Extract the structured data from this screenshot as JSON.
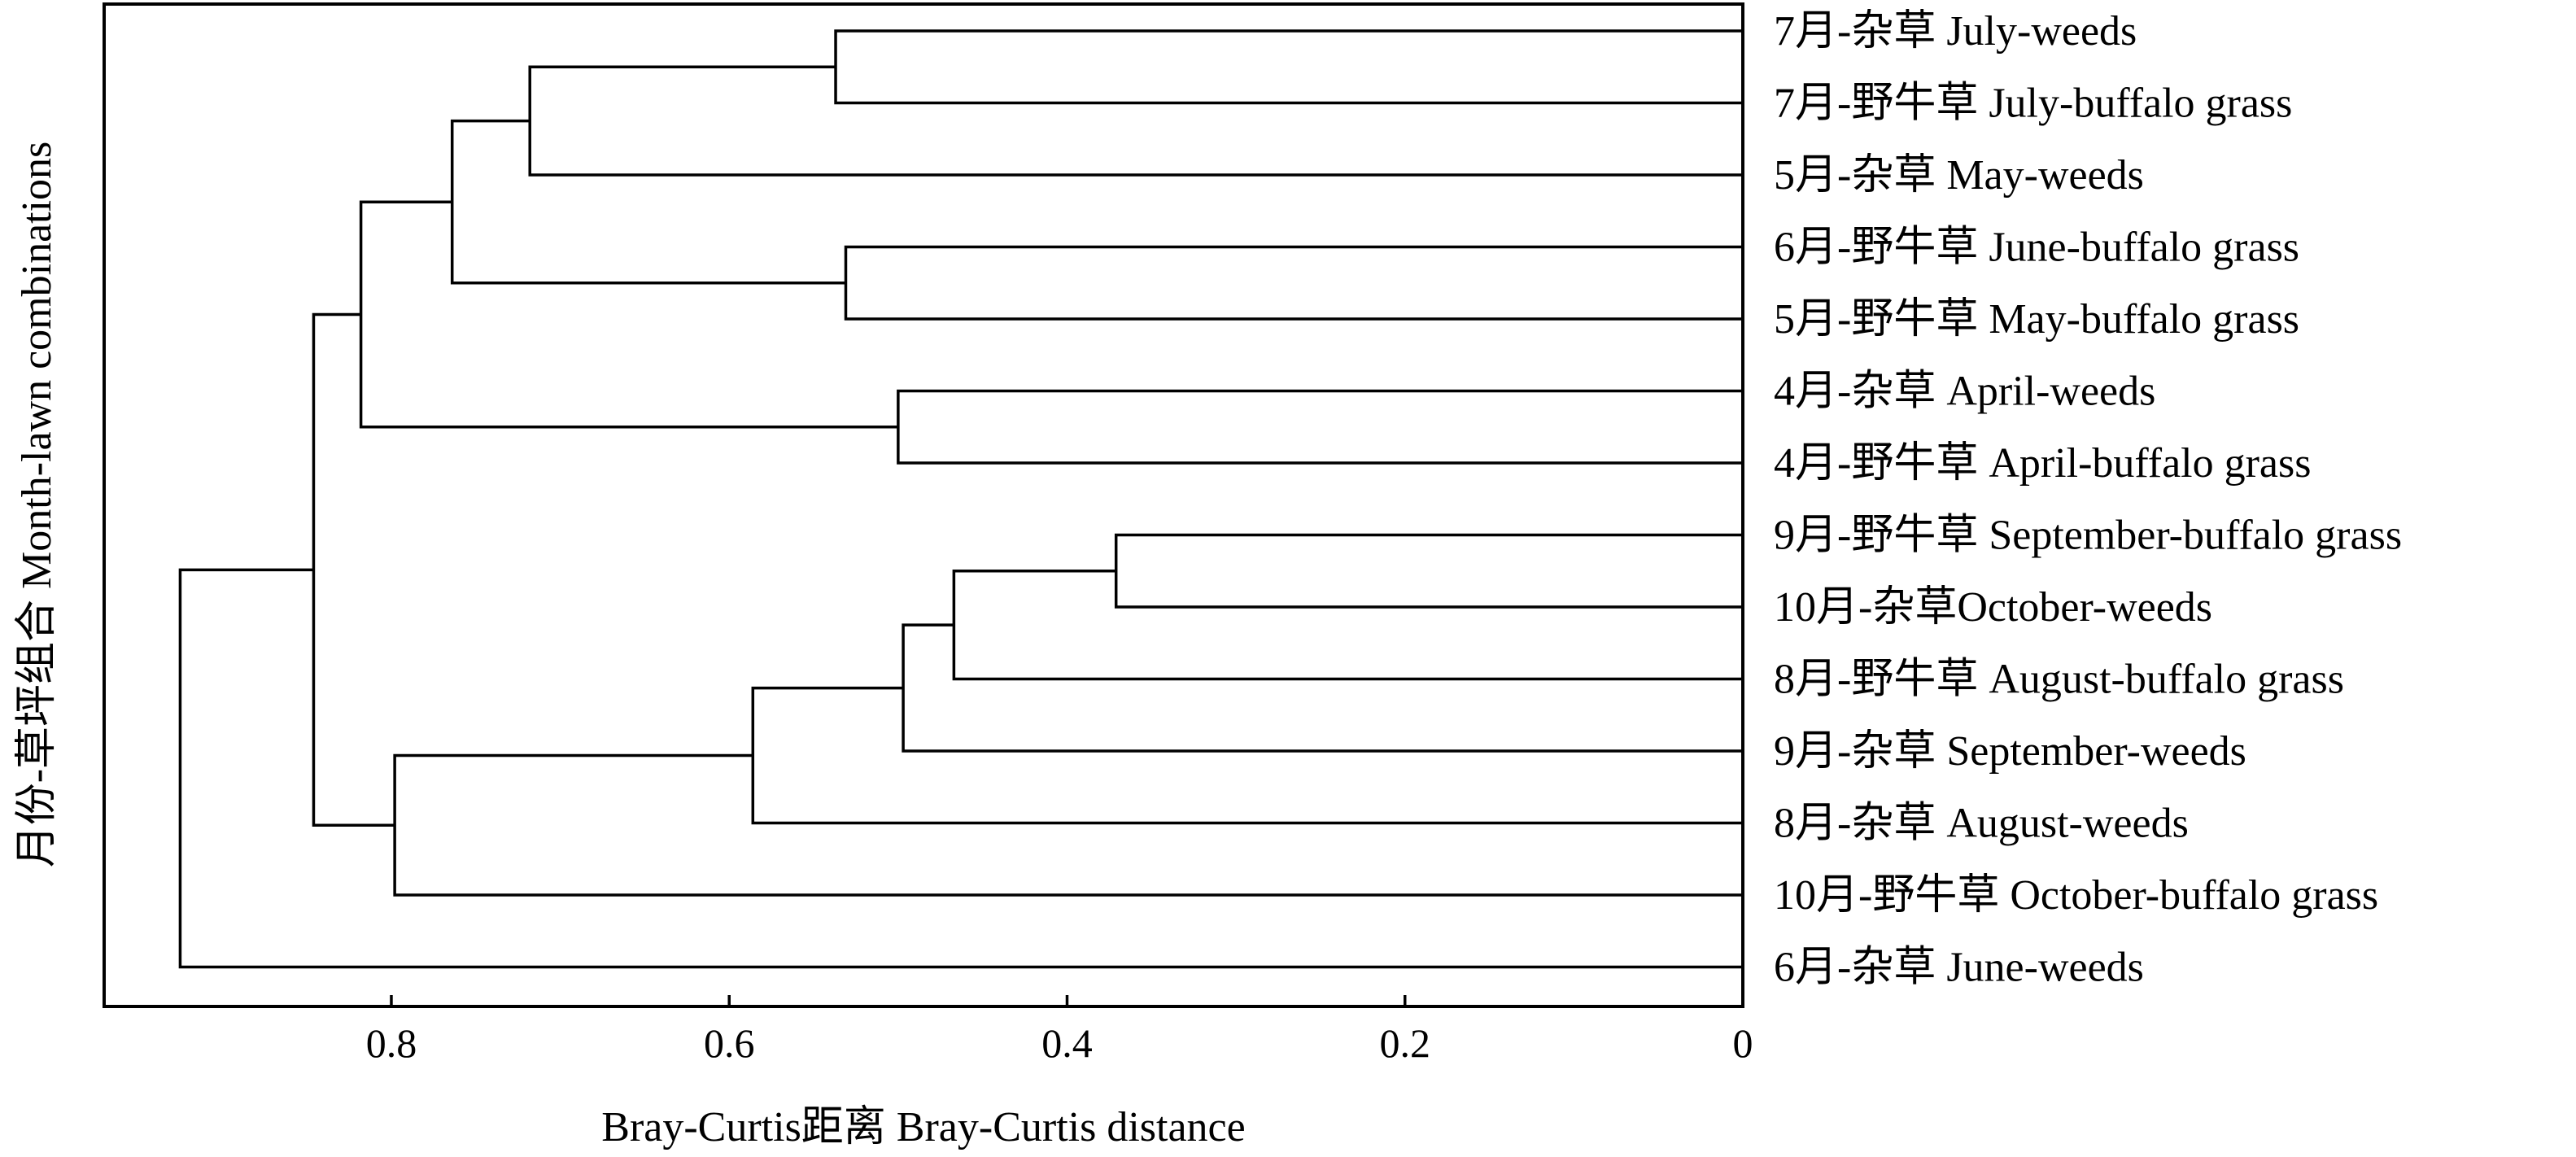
{
  "chart_data": {
    "type": "dendrogram",
    "xlabel": "Bray-Curtis距离 Bray-Curtis distance",
    "ylabel": "月份-草坪组合 Month-lawn combinations",
    "xlim": [
      0.97,
      0
    ],
    "x_ticks": [
      0.8,
      0.6,
      0.4,
      0.2,
      0
    ],
    "x_tick_labels": [
      "0.8",
      "0.6",
      "0.4",
      "0.2",
      "0"
    ],
    "leaves": [
      "7月-杂草 July-weeds",
      "7月-野牛草 July-buffalo grass",
      "5月-杂草 May-weeds",
      "6月-野牛草 June-buffalo grass",
      "5月-野牛草 May-buffalo grass",
      "4月-杂草 April-weeds",
      "4月-野牛草 April-buffalo grass",
      "9月-野牛草 September-buffalo grass",
      "10月-杂草October-weeds",
      "8月-野牛草 August-buffalo grass",
      "9月-杂草 September-weeds",
      "8月-杂草 August-weeds",
      "10月-野牛草  October-buffalo grass",
      "6月-杂草 June-weeds"
    ],
    "merges": [
      {
        "left": "L0",
        "right": "L1",
        "height": 0.537
      },
      {
        "left": "C0",
        "right": "L2",
        "height": 0.718
      },
      {
        "left": "L3",
        "right": "L4",
        "height": 0.531
      },
      {
        "left": "C1",
        "right": "C2",
        "height": 0.764
      },
      {
        "left": "L5",
        "right": "L6",
        "height": 0.5
      },
      {
        "left": "C3",
        "right": "C4",
        "height": 0.818
      },
      {
        "left": "L7",
        "right": "L8",
        "height": 0.371
      },
      {
        "left": "C6",
        "right": "L9",
        "height": 0.467
      },
      {
        "left": "C7",
        "right": "L10",
        "height": 0.497
      },
      {
        "left": "C8",
        "right": "L11",
        "height": 0.586
      },
      {
        "left": "C9",
        "right": "L12",
        "height": 0.798
      },
      {
        "left": "C5",
        "right": "C10",
        "height": 0.846
      },
      {
        "left": "C11",
        "right": "L13",
        "height": 0.925
      }
    ]
  }
}
